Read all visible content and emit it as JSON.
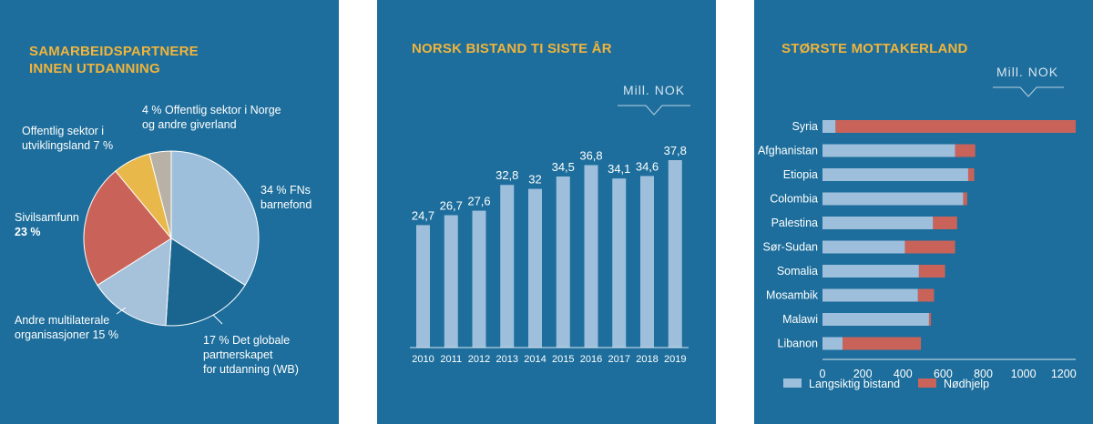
{
  "panels": {
    "partners": {
      "title": "SAMARBEIDSPARTNERE\nINNEN UTDANNING"
    },
    "aid": {
      "title": "NORSK BISTAND TI SISTE ÅR",
      "unit": "Mill. NOK"
    },
    "recipients": {
      "title": "STØRSTE MOTTAKERLAND",
      "unit": "Mill. NOK"
    }
  },
  "colors": {
    "background": "#1d6e9c",
    "title": "#f0b43c",
    "long_term": "#9ebfdc",
    "emergency": "#c9635a",
    "pie_unicef": "#9ebfdc",
    "pie_gpe": "#1a6590",
    "pie_multilateral": "#a6c2da",
    "pie_civil": "#c9635a",
    "pie_dev_public": "#e9b84a",
    "pie_norway_public": "#b7b2a5"
  },
  "chart_data": [
    {
      "type": "pie",
      "title": "SAMARBEIDSPARTNERE INNEN UTDANNING",
      "slices": [
        {
          "key": "unicef",
          "value": 34,
          "lines": [
            {
              "t": "34 % FNs",
              "b": false
            },
            {
              "t": "barnefond",
              "b": false
            }
          ],
          "color": "#9ebfdc"
        },
        {
          "key": "gpe",
          "value": 17,
          "lines": [
            {
              "t": "17 % Det globale",
              "b": false
            },
            {
              "t": "partnerskapet",
              "b": false
            },
            {
              "t": "for utdanning (WB)",
              "b": false
            }
          ],
          "color": "#1a6590"
        },
        {
          "key": "multilateral",
          "value": 15,
          "lines": [
            {
              "t": "Andre multilaterale",
              "b": false
            },
            {
              "t": "organisasjoner 15 %",
              "b": false
            }
          ],
          "color": "#a6c2da"
        },
        {
          "key": "civil",
          "value": 23,
          "lines": [
            {
              "t": "Sivilsamfunn",
              "b": false
            },
            {
              "t": "23 %",
              "b": true
            }
          ],
          "color": "#c9635a"
        },
        {
          "key": "dev-public",
          "value": 7,
          "lines": [
            {
              "t": "Offentlig sektor i",
              "b": false
            },
            {
              "t": "utviklingsland 7 %",
              "b": false
            }
          ],
          "color": "#e9b84a"
        },
        {
          "key": "norway-public",
          "value": 4,
          "lines": [
            {
              "t": "4 % Offentlig sektor i Norge",
              "b": false
            },
            {
              "t": "og andre giverland",
              "b": false
            }
          ],
          "color": "#b7b2a5"
        }
      ]
    },
    {
      "type": "bar",
      "title": "NORSK BISTAND TI SISTE ÅR",
      "ylabel": "Mill. NOK",
      "categories": [
        "2010",
        "2011",
        "2012",
        "2013",
        "2014",
        "2015",
        "2016",
        "2017",
        "2018",
        "2019"
      ],
      "values": [
        24.7,
        26.7,
        27.6,
        32.8,
        32,
        34.5,
        36.8,
        34.1,
        34.6,
        37.8
      ],
      "value_labels": [
        "24,7",
        "26,7",
        "27,6",
        "32,8",
        "32",
        "34,5",
        "36,8",
        "34,1",
        "34,6",
        "37,8"
      ],
      "ylim": [
        0,
        37.8
      ]
    },
    {
      "type": "bar",
      "orientation": "horizontal",
      "stacked": true,
      "title": "STØRSTE MOTTAKERLAND",
      "xlabel": "Mill. NOK",
      "categories": [
        "Syria",
        "Afghanistan",
        "Etiopia",
        "Colombia",
        "Palestina",
        "Sør-Sudan",
        "Somalia",
        "Mosambik",
        "Malawi",
        "Libanon"
      ],
      "series": [
        {
          "name": "Langsiktig bistand",
          "values": [
            65,
            660,
            725,
            700,
            550,
            410,
            480,
            475,
            530,
            100
          ]
        },
        {
          "name": "Nødhjelp",
          "values": [
            1195,
            100,
            30,
            20,
            120,
            250,
            130,
            80,
            10,
            390
          ]
        }
      ],
      "xticks": [
        0,
        200,
        400,
        600,
        800,
        1000,
        1200
      ],
      "xlim": [
        0,
        1260
      ],
      "legend": "bottom"
    }
  ]
}
